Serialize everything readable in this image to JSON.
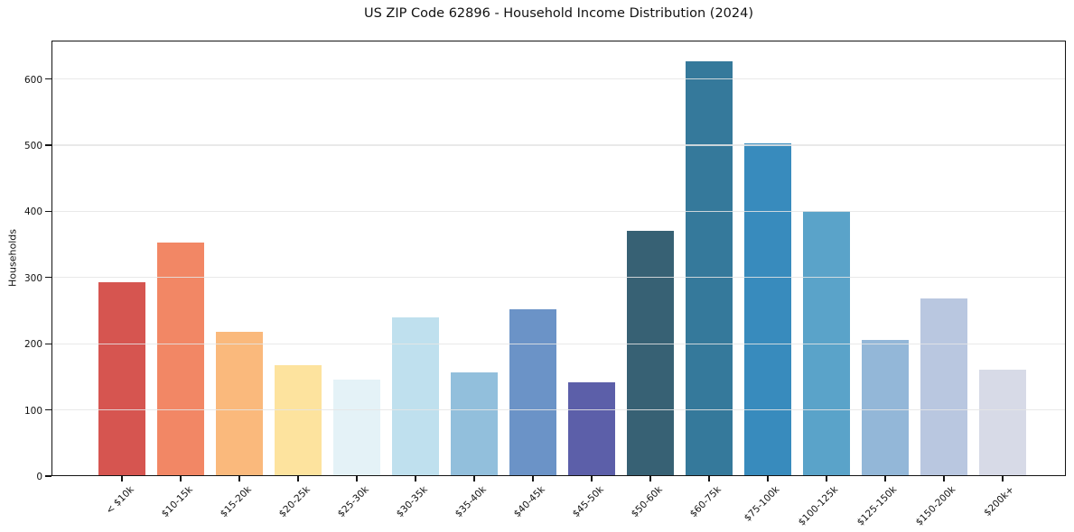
{
  "chart_data": {
    "type": "bar",
    "title": "US ZIP Code 62896 - Household Income Distribution (2024)",
    "xlabel": "",
    "ylabel": "Households",
    "categories": [
      "< $10k",
      "$10-15k",
      "$15-20k",
      "$20-25k",
      "$25-30k",
      "$30-35k",
      "$35-40k",
      "$40-45k",
      "$45-50k",
      "$50-60k",
      "$60-75k",
      "$75-100k",
      "$100-125k",
      "$125-150k",
      "$150-200k",
      "$200k+"
    ],
    "values": [
      293,
      353,
      218,
      168,
      146,
      240,
      157,
      252,
      142,
      371,
      627,
      503,
      400,
      206,
      268,
      161
    ],
    "bar_colors": [
      "#d65550",
      "#f28765",
      "#fab97c",
      "#fde39e",
      "#e4f2f7",
      "#bfe0ee",
      "#92bfdc",
      "#6b93c7",
      "#5c5fa9",
      "#376174",
      "#35799b",
      "#388bbd",
      "#5aa3c9",
      "#93b7d8",
      "#b9c7e0",
      "#d7dae7"
    ],
    "yticks": [
      0,
      100,
      200,
      300,
      400,
      500,
      600
    ],
    "ylim": [
      0,
      658
    ],
    "grid": "horizontal",
    "legend": "none"
  }
}
